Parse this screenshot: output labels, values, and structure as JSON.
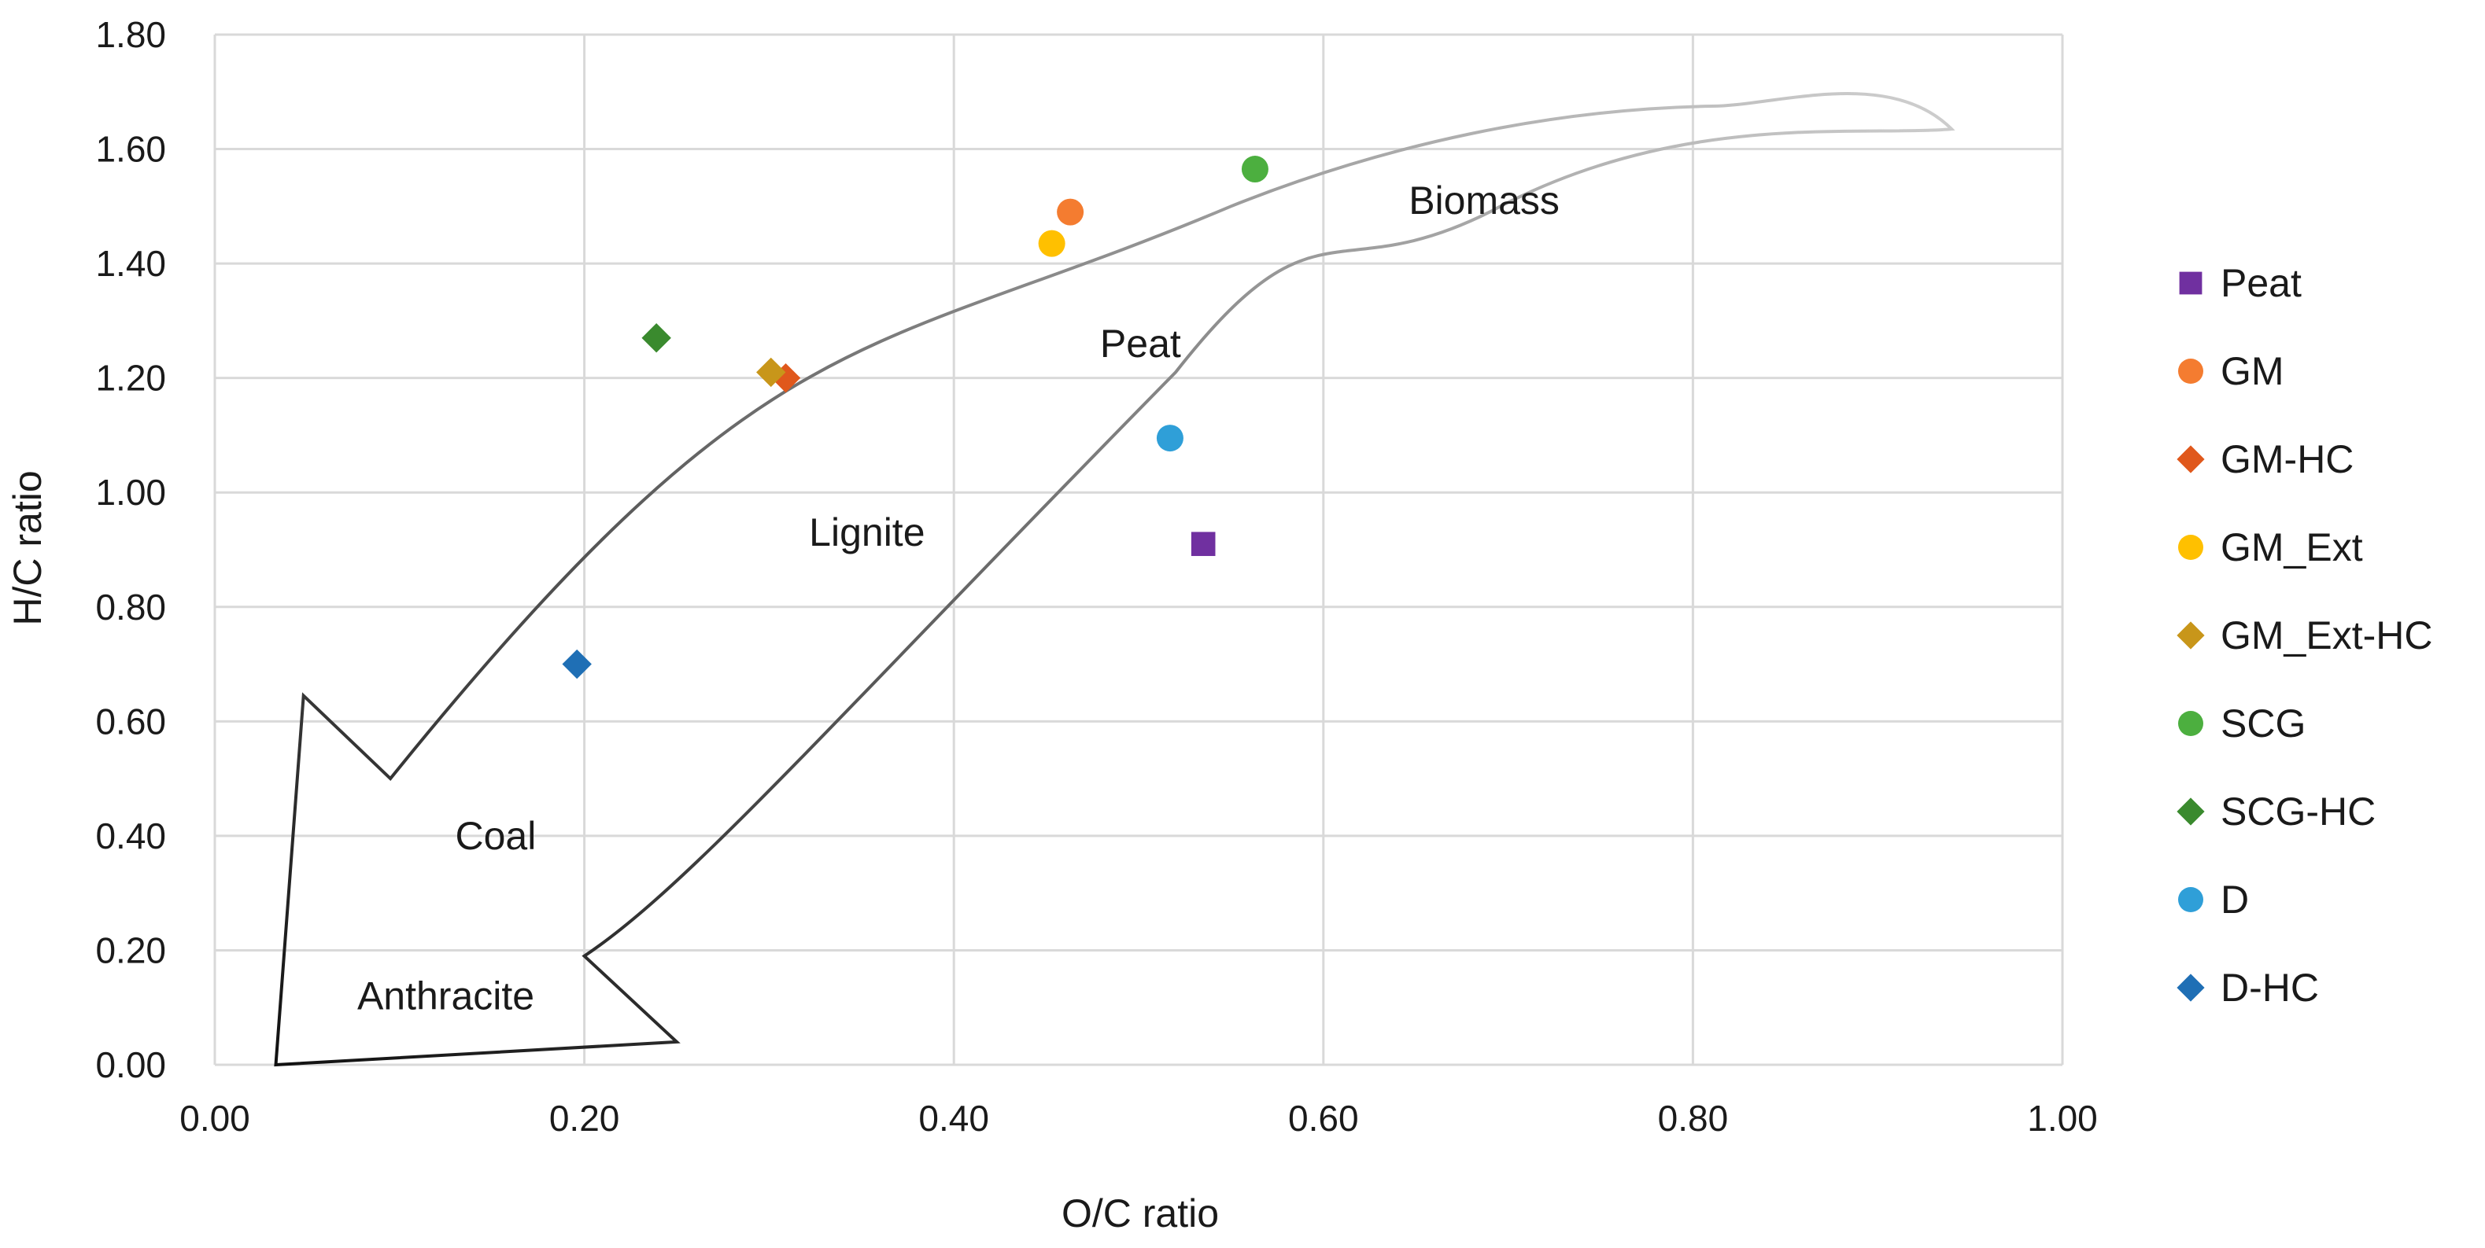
{
  "chart_data": {
    "type": "scatter",
    "xlabel": "O/C ratio",
    "ylabel": "H/C ratio",
    "xlim": [
      0,
      1.0
    ],
    "ylim": [
      0,
      1.8
    ],
    "x_ticks": [
      "0.00",
      "0.20",
      "0.40",
      "0.60",
      "0.80",
      "1.00"
    ],
    "y_ticks": [
      "0.00",
      "0.20",
      "0.40",
      "0.60",
      "0.80",
      "1.00",
      "1.20",
      "1.40",
      "1.60",
      "1.80"
    ],
    "grid": true,
    "legend_position": "right",
    "series": [
      {
        "name": "Peat",
        "marker": "square",
        "color": "#7030A0",
        "points": [
          {
            "x": 0.535,
            "y": 0.91
          }
        ]
      },
      {
        "name": "GM",
        "marker": "circle",
        "color": "#F47C30",
        "points": [
          {
            "x": 0.463,
            "y": 1.49
          }
        ]
      },
      {
        "name": "GM-HC",
        "marker": "diamond",
        "color": "#E0581C",
        "points": [
          {
            "x": 0.309,
            "y": 1.2
          }
        ]
      },
      {
        "name": "GM_Ext",
        "marker": "circle",
        "color": "#FFC000",
        "points": [
          {
            "x": 0.453,
            "y": 1.435
          }
        ]
      },
      {
        "name": "GM_Ext-HC",
        "marker": "diamond",
        "color": "#C8961A",
        "points": [
          {
            "x": 0.301,
            "y": 1.21
          }
        ]
      },
      {
        "name": "SCG",
        "marker": "circle",
        "color": "#4CAF3F",
        "points": [
          {
            "x": 0.563,
            "y": 1.565
          }
        ]
      },
      {
        "name": "SCG-HC",
        "marker": "diamond",
        "color": "#3A8A2E",
        "points": [
          {
            "x": 0.239,
            "y": 1.27
          }
        ]
      },
      {
        "name": "D",
        "marker": "circle",
        "color": "#2F9FD8",
        "points": [
          {
            "x": 0.517,
            "y": 1.095
          }
        ]
      },
      {
        "name": "D-HC",
        "marker": "diamond",
        "color": "#1F6FB5",
        "points": [
          {
            "x": 0.196,
            "y": 0.7
          }
        ]
      }
    ],
    "annotations": [
      {
        "text": "Biomass",
        "x": 0.687,
        "y": 1.51
      },
      {
        "text": "Peat",
        "x": 0.501,
        "y": 1.26
      },
      {
        "text": "Lignite",
        "x": 0.353,
        "y": 0.93
      },
      {
        "text": "Coal",
        "x": 0.152,
        "y": 0.4
      },
      {
        "text": "Anthracite",
        "x": 0.125,
        "y": 0.12
      }
    ],
    "arrow": {
      "description": "curved arrow from Biomass toward Anthracite",
      "outline": [
        [
          0.94,
          1.635
        ],
        [
          0.81,
          1.675
        ],
        [
          0.75,
          1.67
        ],
        [
          0.55,
          1.5
        ],
        [
          0.35,
          1.2
        ],
        [
          0.25,
          0.98
        ],
        [
          0.095,
          0.5
        ],
        [
          0.048,
          0.645
        ],
        [
          0.033,
          0.0
        ],
        [
          0.25,
          0.04
        ],
        [
          0.2,
          0.19
        ],
        [
          0.3,
          0.52
        ],
        [
          0.42,
          0.96
        ],
        [
          0.52,
          1.21
        ],
        [
          0.69,
          1.49
        ],
        [
          0.94,
          1.635
        ]
      ]
    }
  }
}
